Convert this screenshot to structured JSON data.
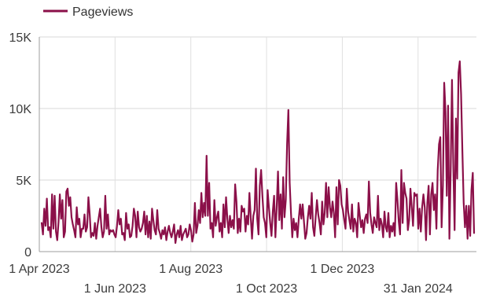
{
  "chart_data": {
    "type": "line",
    "legend": {
      "position": "top-left"
    },
    "grid": true,
    "series": [
      {
        "name": "Pageviews",
        "color": "#8b1049",
        "values": [
          2000,
          1200,
          3000,
          1800,
          3700,
          1500,
          1700,
          1000,
          4000,
          1600,
          3900,
          1400,
          800,
          2100,
          4000,
          2300,
          3600,
          1000,
          1400,
          4200,
          4400,
          3200,
          3800,
          2400,
          1900,
          1500,
          1000,
          3100,
          1900,
          2300,
          1000,
          1600,
          1600,
          2600,
          1400,
          1700,
          3800,
          2600,
          1000,
          1300,
          1100,
          2000,
          900,
          1800,
          2400,
          3000,
          1700,
          1000,
          1400,
          3900,
          1600,
          2600,
          1200,
          1500,
          1400,
          1500,
          1200,
          1000,
          1800,
          2900,
          1900,
          2300,
          1200,
          1300,
          800,
          2700,
          1600,
          1900,
          1000,
          1100,
          1800,
          3000,
          2500,
          1000,
          2800,
          1700,
          1400,
          1600,
          2000,
          2800,
          1200,
          2500,
          1000,
          2100,
          900,
          3000,
          2200,
          1500,
          1200,
          2900,
          1600,
          1300,
          900,
          1500,
          1200,
          1700,
          800,
          1400,
          1800,
          1300,
          1000,
          1400,
          1900,
          600,
          1200,
          1500,
          1000,
          1800,
          800,
          1200,
          1400,
          1600,
          1000,
          1200,
          1900,
          1500,
          700,
          1200,
          3400,
          1300,
          1800,
          2900,
          2000,
          4100,
          2400,
          3400,
          2500,
          6700,
          2500,
          4800,
          1600,
          2000,
          1000,
          3600,
          1800,
          2400,
          2800,
          1400,
          2000,
          1000,
          3300,
          1700,
          3800,
          2300,
          1300,
          2500,
          1700,
          2200,
          1600,
          4700,
          3500,
          1300,
          2300,
          1400,
          3200,
          2800,
          3000,
          1400,
          2500,
          1900,
          4100,
          2400,
          900,
          2500,
          2900,
          5800,
          2300,
          1200,
          4600,
          5700,
          3900,
          2400,
          2000,
          1000,
          4300,
          3100,
          2000,
          1100,
          2800,
          3900,
          1000,
          3100,
          5600,
          2200,
          4000,
          1600,
          5200,
          2400,
          3600,
          7500,
          9900,
          4800,
          2700,
          1000,
          2300,
          1500,
          2000,
          1000,
          2300,
          3300,
          2300,
          3300,
          2100,
          900,
          1300,
          2400,
          3200,
          2300,
          4100,
          1700,
          1100,
          2400,
          3600,
          2600,
          2000,
          1200,
          3500,
          1900,
          2700,
          4800,
          2400,
          4500,
          3100,
          2400,
          3500,
          2700,
          1000,
          4500,
          1900,
          5000,
          4600,
          3300,
          2900,
          2200,
          1600,
          4400,
          2800,
          2200,
          1600,
          3300,
          1400,
          2300,
          2000,
          1000,
          3400,
          2500,
          1700,
          2200,
          1300,
          2300,
          2600,
          2000,
          4900,
          2700,
          1900,
          1300,
          2400,
          2000,
          1700,
          3900,
          1500,
          2300,
          1900,
          1000,
          2800,
          1700,
          1400,
          2700,
          1000,
          1800,
          1400,
          2000,
          1100,
          4800,
          3600,
          2100,
          1200,
          5700,
          2000,
          4800,
          4100,
          3700,
          1500,
          2200,
          4400,
          3100,
          1800,
          4100,
          3900,
          4000,
          1600,
          3000,
          1400,
          3100,
          4000,
          3100,
          800,
          3400,
          4600,
          1200,
          4000,
          4800,
          2900,
          4000,
          1600,
          5700,
          7500,
          8000,
          1700,
          4600,
          11800,
          9800,
          3900,
          10200,
          900,
          5800,
          12000,
          6100,
          1500,
          9300,
          5100,
          12500,
          13300,
          11000,
          7000,
          3400,
          1700,
          3200,
          900,
          3200,
          1100,
          4300,
          5500,
          1300
        ]
      }
    ],
    "x_range": [
      "2023-04-01",
      "2024-03-18"
    ],
    "xticks_top": [
      "1 Apr 2023",
      "1 Aug 2023",
      "1 Dec 2023"
    ],
    "xticks_bottom": [
      "1 Jun 2023",
      "1 Oct 2023",
      "31 Jan 2024"
    ],
    "xtick_dates": {
      "1 Apr 2023": "2023-04-01",
      "1 Jun 2023": "2023-06-01",
      "1 Aug 2023": "2023-08-01",
      "1 Oct 2023": "2023-10-01",
      "1 Dec 2023": "2023-12-01",
      "31 Jan 2024": "2024-01-31"
    },
    "yticks": [
      "0",
      "5K",
      "10K",
      "15K"
    ],
    "ytick_values": [
      0,
      5000,
      10000,
      15000
    ],
    "ylim": [
      0,
      15000
    ]
  }
}
